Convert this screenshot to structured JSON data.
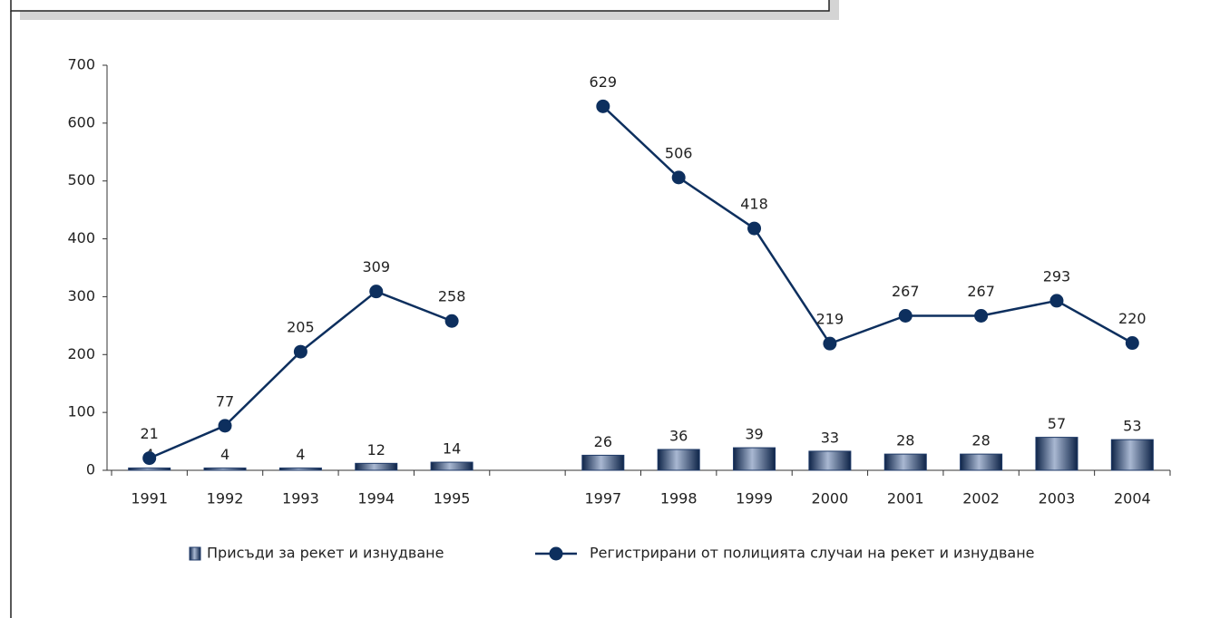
{
  "chart_data": {
    "type": "bar-line",
    "categories": [
      "1991",
      "1992",
      "1993",
      "1994",
      "1995",
      null,
      "1997",
      "1998",
      "1999",
      "2000",
      "2001",
      "2002",
      "2003",
      "2004"
    ],
    "series": [
      {
        "name": "Присъди за рекет и изнудване",
        "type": "bar",
        "color": "#1f3a68",
        "values": [
          4,
          4,
          4,
          12,
          14,
          null,
          26,
          36,
          39,
          33,
          28,
          28,
          57,
          53
        ]
      },
      {
        "name": "Регистрирани от полицията случаи на рекет и изнудване",
        "type": "line",
        "color": "#0d2f5e",
        "values": [
          21,
          77,
          205,
          309,
          258,
          null,
          629,
          506,
          418,
          219,
          267,
          267,
          293,
          220
        ]
      }
    ],
    "ylim": [
      0,
      700
    ],
    "yticks": [
      0,
      100,
      200,
      300,
      400,
      500,
      600,
      700
    ]
  }
}
